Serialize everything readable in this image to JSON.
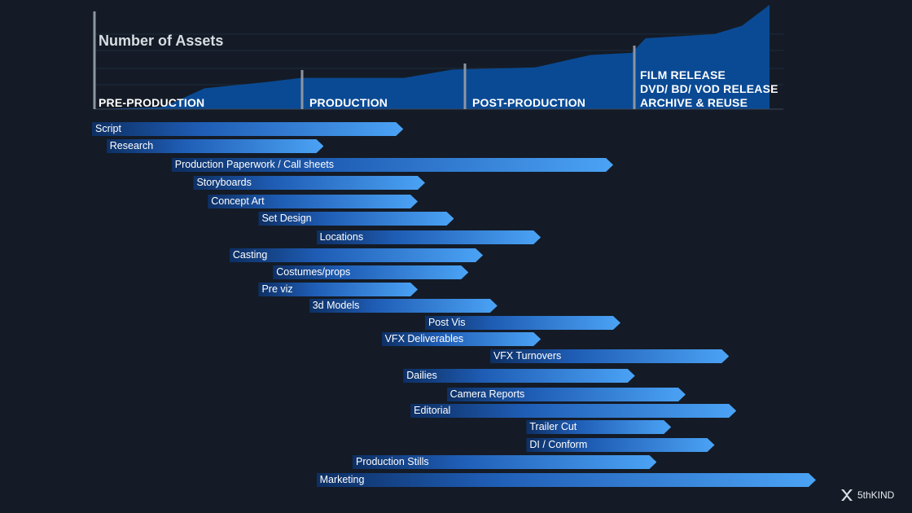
{
  "chart_data": {
    "type": "gantt",
    "title": "Number of Assets",
    "phases": [
      {
        "label": "PRE-PRODUCTION"
      },
      {
        "label": "PRODUCTION"
      },
      {
        "label": "POST-PRODUCTION"
      },
      {
        "label_lines": [
          "FILM RELEASE",
          "DVD/ BD/ VOD RELEASE",
          "ARCHIVE & REUSE"
        ]
      }
    ],
    "tasks": [
      {
        "name": "Script",
        "start": 0.0,
        "end": 0.43
      },
      {
        "name": "Research",
        "start": 0.02,
        "end": 0.32
      },
      {
        "name": "Production Paperwork / Call sheets",
        "start": 0.11,
        "end": 0.72
      },
      {
        "name": "Storyboards",
        "start": 0.14,
        "end": 0.46
      },
      {
        "name": "Concept Art",
        "start": 0.16,
        "end": 0.45
      },
      {
        "name": "Set Design",
        "start": 0.23,
        "end": 0.5
      },
      {
        "name": "Locations",
        "start": 0.31,
        "end": 0.62
      },
      {
        "name": "Casting",
        "start": 0.19,
        "end": 0.54
      },
      {
        "name": "Costumes/props",
        "start": 0.25,
        "end": 0.52
      },
      {
        "name": "Pre viz",
        "start": 0.23,
        "end": 0.45
      },
      {
        "name": "3d Models",
        "start": 0.3,
        "end": 0.56
      },
      {
        "name": "Post Vis",
        "start": 0.46,
        "end": 0.73
      },
      {
        "name": "VFX Deliverables",
        "start": 0.4,
        "end": 0.62
      },
      {
        "name": "VFX Turnovers",
        "start": 0.55,
        "end": 0.88
      },
      {
        "name": "Dailies",
        "start": 0.43,
        "end": 0.75
      },
      {
        "name": "Camera Reports",
        "start": 0.49,
        "end": 0.82
      },
      {
        "name": "Editorial",
        "start": 0.44,
        "end": 0.89
      },
      {
        "name": "Trailer Cut",
        "start": 0.6,
        "end": 0.8
      },
      {
        "name": "DI / Conform",
        "start": 0.6,
        "end": 0.86
      },
      {
        "name": "Production Stills",
        "start": 0.36,
        "end": 0.78
      },
      {
        "name": "Marketing",
        "start": 0.31,
        "end": 1.0
      }
    ],
    "assets_curve": {
      "x": [
        0.0,
        0.1,
        0.16,
        0.25,
        0.3,
        0.45,
        0.52,
        0.64,
        0.72,
        0.78,
        0.8,
        0.9,
        0.94,
        0.98
      ],
      "y": [
        0.0,
        0.02,
        0.2,
        0.26,
        0.3,
        0.3,
        0.38,
        0.4,
        0.52,
        0.54,
        0.68,
        0.72,
        0.8,
        1.0
      ]
    }
  },
  "colors": {
    "background": "#141b26",
    "area": "#0a4a94",
    "bar_start": "#0d2f63",
    "bar_end": "#4ba3f5"
  },
  "icons": {
    "logo": "5thkind-logo-icon"
  },
  "brand": {
    "name": "5thKIND"
  }
}
